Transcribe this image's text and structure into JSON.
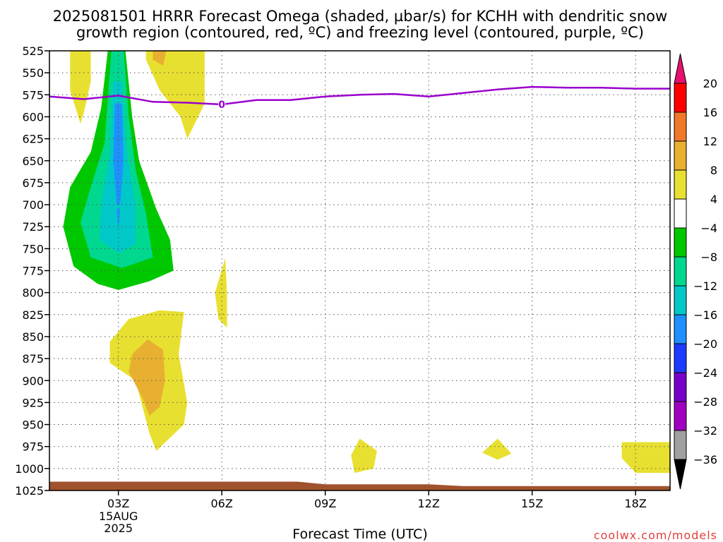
{
  "title_line1": "2025081501 HRRR Forecast Omega (shaded, µbar/s) for KCHH with dendritic snow",
  "title_line2": "growth region (contoured, red, ºC) and freezing level (contoured, purple, ºC)",
  "credit": "coolwx.com/models",
  "colors": {
    "freezing_level": "#9900cc",
    "terrain": "#a0522d",
    "credit": "#e0403a"
  },
  "chart_data": {
    "type": "heatmap",
    "title": "2025081501 HRRR Forecast Omega (shaded, µbar/s) for KCHH with dendritic snow growth region (contoured, red, ºC) and freezing level (contoured, purple, ºC)",
    "xlabel": "Forecast Time (UTC)",
    "ylabel": "",
    "x_unit": "hours after 2025081501",
    "xlim": [
      0,
      18
    ],
    "ylim": [
      1025,
      525
    ],
    "y_ticks": [
      525,
      550,
      575,
      600,
      625,
      650,
      675,
      700,
      725,
      750,
      775,
      800,
      825,
      850,
      875,
      900,
      925,
      950,
      975,
      1000,
      1025
    ],
    "x_ticks": [
      {
        "x": 2,
        "label": "03Z",
        "sub": [
          "15AUG",
          "2025"
        ]
      },
      {
        "x": 5,
        "label": "06Z",
        "sub": []
      },
      {
        "x": 8,
        "label": "09Z",
        "sub": []
      },
      {
        "x": 11,
        "label": "12Z",
        "sub": []
      },
      {
        "x": 14,
        "label": "15Z",
        "sub": []
      },
      {
        "x": 17,
        "label": "18Z",
        "sub": []
      }
    ],
    "colorbar": {
      "levels": [
        20,
        16,
        12,
        8,
        4,
        -4,
        -8,
        -12,
        -16,
        -20,
        -24,
        -28,
        -32,
        -36
      ],
      "colors": [
        "#ff0000",
        "#f07828",
        "#e8b030",
        "#e8e030",
        "#ffffff",
        "#00c800",
        "#00d890",
        "#00c8c8",
        "#1e90ff",
        "#1e3cff",
        "#7800c8",
        "#a000c0",
        "#a0a0a0"
      ],
      "top_color": "#e8106e",
      "bottom_color": "#000000"
    },
    "freezing_level_label": "0",
    "freezing_level": {
      "x": [
        0,
        1,
        2,
        3,
        4,
        5,
        6,
        7,
        8,
        9,
        10,
        11,
        12,
        13,
        14,
        15,
        16,
        17,
        18
      ],
      "y": [
        577,
        580,
        576,
        583,
        584,
        586,
        581,
        581,
        577,
        575,
        574,
        577,
        573,
        569,
        566,
        567,
        567,
        568,
        568
      ]
    },
    "omega_regions": [
      {
        "level": 4,
        "color": "#e8e030",
        "points": [
          [
            0.6,
            523
          ],
          [
            1.2,
            523
          ],
          [
            1.2,
            560
          ],
          [
            1.0,
            595
          ],
          [
            0.9,
            608
          ],
          [
            0.6,
            570
          ]
        ]
      },
      {
        "level": 4,
        "color": "#e8e030",
        "points": [
          [
            2.8,
            523
          ],
          [
            4.5,
            523
          ],
          [
            4.5,
            585
          ],
          [
            4.0,
            625
          ],
          [
            3.8,
            600
          ],
          [
            3.2,
            570
          ],
          [
            2.8,
            535
          ]
        ]
      },
      {
        "level": 8,
        "color": "#e8b030",
        "points": [
          [
            3.0,
            523
          ],
          [
            3.4,
            523
          ],
          [
            3.3,
            542
          ],
          [
            3.0,
            535
          ]
        ]
      },
      {
        "level": -4,
        "color": "#00c800",
        "points": [
          [
            1.7,
            523
          ],
          [
            2.2,
            523
          ],
          [
            2.4,
            600
          ],
          [
            2.6,
            650
          ],
          [
            3.1,
            705
          ],
          [
            3.5,
            740
          ],
          [
            3.6,
            775
          ],
          [
            2.9,
            787
          ],
          [
            2.0,
            797
          ],
          [
            1.4,
            790
          ],
          [
            0.7,
            770
          ],
          [
            0.4,
            725
          ],
          [
            0.6,
            680
          ],
          [
            1.2,
            640
          ],
          [
            1.5,
            590
          ]
        ]
      },
      {
        "level": -8,
        "color": "#00d890",
        "points": [
          [
            1.8,
            523
          ],
          [
            2.15,
            523
          ],
          [
            2.3,
            600
          ],
          [
            2.5,
            660
          ],
          [
            2.8,
            710
          ],
          [
            3.0,
            760
          ],
          [
            2.1,
            772
          ],
          [
            1.2,
            760
          ],
          [
            0.9,
            720
          ],
          [
            1.2,
            680
          ],
          [
            1.6,
            630
          ]
        ]
      },
      {
        "level": -12,
        "color": "#00c8c8",
        "points": [
          [
            1.85,
            560
          ],
          [
            2.1,
            560
          ],
          [
            2.25,
            640
          ],
          [
            2.5,
            700
          ],
          [
            2.5,
            745
          ],
          [
            2.0,
            755
          ],
          [
            1.45,
            740
          ],
          [
            1.5,
            700
          ],
          [
            1.75,
            640
          ]
        ]
      },
      {
        "level": -16,
        "color": "#1e90ff",
        "points": [
          [
            1.9,
            585
          ],
          [
            2.1,
            585
          ],
          [
            2.15,
            650
          ],
          [
            2.05,
            700
          ],
          [
            1.95,
            700
          ],
          [
            1.85,
            650
          ]
        ]
      },
      {
        "level": -16,
        "color": "#1e90ff",
        "points": [
          [
            1.95,
            705
          ],
          [
            2.05,
            705
          ],
          [
            2.02,
            722
          ],
          [
            1.98,
            722
          ]
        ]
      },
      {
        "level": 4,
        "color": "#e8e030",
        "points": [
          [
            5.1,
            761
          ],
          [
            5.15,
            800
          ],
          [
            5.15,
            840
          ],
          [
            4.9,
            830
          ],
          [
            4.8,
            800
          ]
        ]
      },
      {
        "level": 4,
        "color": "#e8e030",
        "points": [
          [
            3.2,
            820
          ],
          [
            3.9,
            822
          ],
          [
            3.75,
            870
          ],
          [
            4.0,
            925
          ],
          [
            3.9,
            950
          ],
          [
            3.1,
            980
          ],
          [
            2.9,
            960
          ],
          [
            2.5,
            900
          ],
          [
            1.75,
            880
          ],
          [
            1.75,
            856
          ],
          [
            2.3,
            830
          ]
        ]
      },
      {
        "level": 8,
        "color": "#e8b030",
        "points": [
          [
            2.85,
            853
          ],
          [
            3.3,
            865
          ],
          [
            3.35,
            900
          ],
          [
            3.2,
            930
          ],
          [
            2.9,
            940
          ],
          [
            2.7,
            920
          ],
          [
            2.3,
            890
          ],
          [
            2.4,
            870
          ]
        ]
      },
      {
        "level": 4,
        "color": "#e8e030",
        "points": [
          [
            9.0,
            966
          ],
          [
            9.5,
            980
          ],
          [
            9.4,
            1000
          ],
          [
            8.85,
            1005
          ],
          [
            8.75,
            985
          ]
        ]
      },
      {
        "level": 4,
        "color": "#e8e030",
        "points": [
          [
            13.0,
            966
          ],
          [
            13.4,
            983
          ],
          [
            13.0,
            990
          ],
          [
            12.55,
            982
          ]
        ]
      },
      {
        "level": 4,
        "color": "#e8e030",
        "points": [
          [
            16.6,
            970
          ],
          [
            18,
            970
          ],
          [
            18,
            1005
          ],
          [
            17.0,
            1005
          ],
          [
            16.6,
            988
          ]
        ]
      }
    ],
    "terrain": {
      "x": [
        0,
        7.2,
        8.0,
        11.0,
        12.0,
        18
      ],
      "y": [
        1015,
        1015,
        1018,
        1018,
        1020,
        1020
      ]
    }
  }
}
